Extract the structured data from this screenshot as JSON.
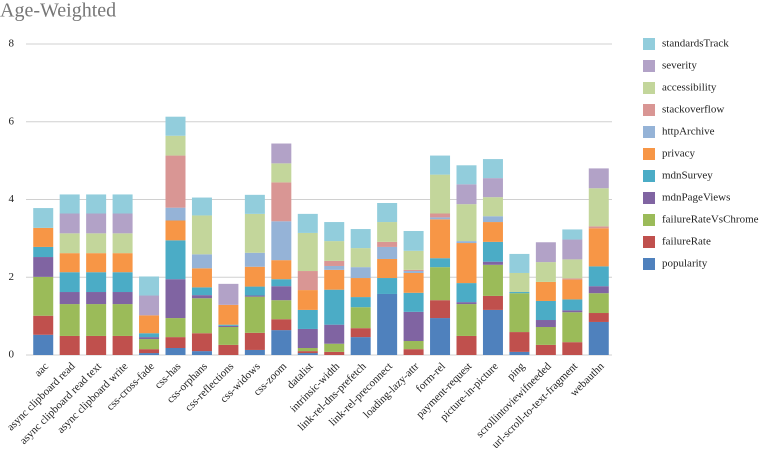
{
  "chart_data": {
    "type": "stacked-bar",
    "title": "Age-Weighted",
    "categories": [
      "aac",
      "async clipboard read",
      "async clipboard read text",
      "async clipboard write",
      "css-cross-fade",
      "css-has",
      "css-orphans",
      "css-reflections",
      "css-widows",
      "css-zoom",
      "datalist",
      "intrinsic-width",
      "link-rel-dns-prefetch",
      "link-rel-preconnect",
      "loading-lazy-attr",
      "form-rel",
      "payment-request",
      "picture-in-picture",
      "ping",
      "scrollintoviewifneeded",
      "url-scroll-to-text-fragment",
      "webauthn"
    ],
    "series": [
      {
        "name": "popularity",
        "color": "#4f81bd",
        "values": [
          0.52,
          0,
          0,
          0,
          0.05,
          0.18,
          0.1,
          0,
          0.13,
          0.64,
          0.05,
          0,
          0.46,
          1.57,
          0,
          0.95,
          0,
          1.16,
          0.08,
          0,
          0,
          0.85
        ]
      },
      {
        "name": "failureRate",
        "color": "#c0504d",
        "values": [
          0.49,
          0.49,
          0.49,
          0.49,
          0.1,
          0.28,
          0.46,
          0.26,
          0.44,
          0.28,
          0.05,
          0.08,
          0.23,
          0,
          0.15,
          0.46,
          0.49,
          0.36,
          0.51,
          0.26,
          0.33,
          0.23
        ]
      },
      {
        "name": "failureRateVsChrome",
        "color": "#9bbb59",
        "values": [
          1.0,
          0.82,
          0.82,
          0.82,
          0.26,
          0.49,
          0.9,
          0.46,
          0.93,
          0.49,
          0.08,
          0.21,
          0.54,
          0,
          0.21,
          0.85,
          0.82,
          0.8,
          1.0,
          0.46,
          0.77,
          0.51
        ]
      },
      {
        "name": "mdnPageViews",
        "color": "#8064a2",
        "values": [
          0.51,
          0.31,
          0.31,
          0.31,
          0.05,
          1.0,
          0.08,
          0.03,
          0.03,
          0.36,
          0.49,
          0.49,
          0,
          0,
          0.75,
          0,
          0.05,
          0.08,
          0,
          0.18,
          0.05,
          0.18
        ]
      },
      {
        "name": "mdnSurvey",
        "color": "#4bacc6",
        "values": [
          0.26,
          0.51,
          0.51,
          0.51,
          0.1,
          1.0,
          0.2,
          0.03,
          0.23,
          0.18,
          0.49,
          0.9,
          0.26,
          0.41,
          0.49,
          0.23,
          0.49,
          0.51,
          0.03,
          0.49,
          0.28,
          0.51
        ]
      },
      {
        "name": "privacy",
        "color": "#f79646",
        "values": [
          0.49,
          0.49,
          0.49,
          0.49,
          0.46,
          0.51,
          0.49,
          0.51,
          0.51,
          0.49,
          0.51,
          0.51,
          0.49,
          0.49,
          0.51,
          1.0,
          1.03,
          0.51,
          0,
          0.49,
          0.51,
          0.98
        ]
      },
      {
        "name": "httpArchive",
        "color": "#95b3d7",
        "values": [
          0,
          0,
          0,
          0,
          0,
          0.33,
          0.36,
          0,
          0.36,
          1.0,
          0,
          0.1,
          0.28,
          0.31,
          0.05,
          0.05,
          0.05,
          0.15,
          0,
          0,
          0,
          0
        ]
      },
      {
        "name": "stackoverflow",
        "color": "#d99694",
        "values": [
          0,
          0,
          0,
          0,
          0,
          1.34,
          0,
          0,
          0,
          1.0,
          0.49,
          0.13,
          0,
          0.13,
          0.03,
          0.1,
          0,
          0,
          0,
          0,
          0.03,
          0.05
        ]
      },
      {
        "name": "accessibility",
        "color": "#c3d69b",
        "values": [
          0,
          0.51,
          0.51,
          0.51,
          0,
          0.51,
          1.0,
          0,
          1.0,
          0.49,
          0.98,
          0.51,
          0.49,
          0.51,
          0.49,
          1.0,
          0.95,
          0.49,
          0.49,
          0.51,
          0.49,
          0.98
        ]
      },
      {
        "name": "severity",
        "color": "#b2a2c7",
        "values": [
          0,
          0.51,
          0.51,
          0.51,
          0.51,
          0,
          0,
          0.54,
          0,
          0.51,
          0,
          0,
          0,
          0,
          0,
          0,
          0.51,
          0.49,
          0,
          0.51,
          0.51,
          0.51
        ]
      },
      {
        "name": "standardsTrack",
        "color": "#92cddc",
        "values": [
          0.51,
          0.49,
          0.49,
          0.49,
          0.49,
          0.49,
          0.46,
          0,
          0.49,
          0,
          0.49,
          0.49,
          0.49,
          0.49,
          0.51,
          0.49,
          0.49,
          0.49,
          0.49,
          0,
          0.26,
          0
        ]
      }
    ],
    "ylim": [
      0,
      8
    ],
    "yticks": [
      0,
      2,
      4,
      6,
      8
    ],
    "grid": true,
    "legend": "right"
  }
}
